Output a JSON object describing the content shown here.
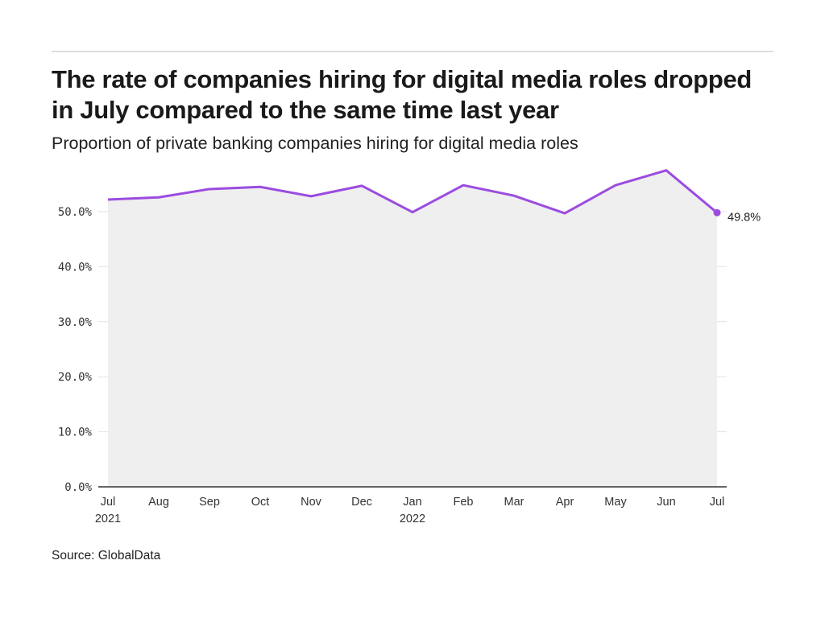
{
  "chart_data": {
    "type": "area",
    "title": "The rate of companies hiring for digital media roles dropped in July compared to the same time last year",
    "subtitle": "Proportion of private banking companies hiring for digital media roles",
    "source": "Source: GlobalData",
    "xlabel": "",
    "ylabel": "",
    "ylim": [
      0,
      50
    ],
    "yticks": [
      0,
      10,
      20,
      30,
      40,
      50
    ],
    "ytick_labels": [
      "0.0%",
      "10.0%",
      "20.0%",
      "30.0%",
      "40.0%",
      "50.0%"
    ],
    "grid": true,
    "categories": [
      "Jul",
      "Aug",
      "Sep",
      "Oct",
      "Nov",
      "Dec",
      "Jan",
      "Feb",
      "Mar",
      "Apr",
      "May",
      "Jun",
      "Jul"
    ],
    "category_sublabels": [
      "2021",
      "",
      "",
      "",
      "",
      "",
      "2022",
      "",
      "",
      "",
      "",
      "",
      ""
    ],
    "series": [
      {
        "name": "Proportion of private banking companies hiring for digital media roles",
        "color": "#9b4ce0",
        "values": [
          52.2,
          52.6,
          54.1,
          54.5,
          52.8,
          54.7,
          49.9,
          54.8,
          52.9,
          49.7,
          54.8,
          57.5,
          49.8
        ]
      }
    ],
    "end_label": "49.8%",
    "area_fill": "#efefef"
  }
}
